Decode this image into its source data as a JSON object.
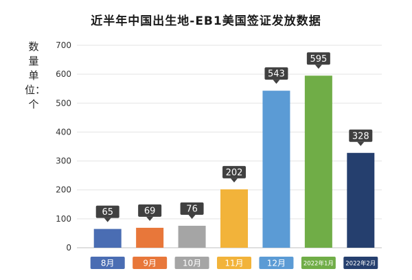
{
  "chart_data": {
    "type": "bar",
    "title": "近半年中国出生地-EB1美国签证发放数据",
    "ylabel": "数量单位：个",
    "xlabel": "",
    "categories": [
      "8月",
      "9月",
      "10月",
      "11月",
      "12月",
      "2022年1月",
      "2022年2月"
    ],
    "values": [
      65,
      69,
      76,
      202,
      543,
      595,
      328
    ],
    "colors": [
      "#4a6db3",
      "#e8773a",
      "#a5a5a5",
      "#f2b33a",
      "#5b9bd5",
      "#70ad47",
      "#253f6e"
    ],
    "ylim": [
      0,
      700
    ],
    "yticks": [
      0,
      100,
      200,
      300,
      400,
      500,
      600,
      700
    ],
    "grid": true,
    "legend": "none"
  }
}
